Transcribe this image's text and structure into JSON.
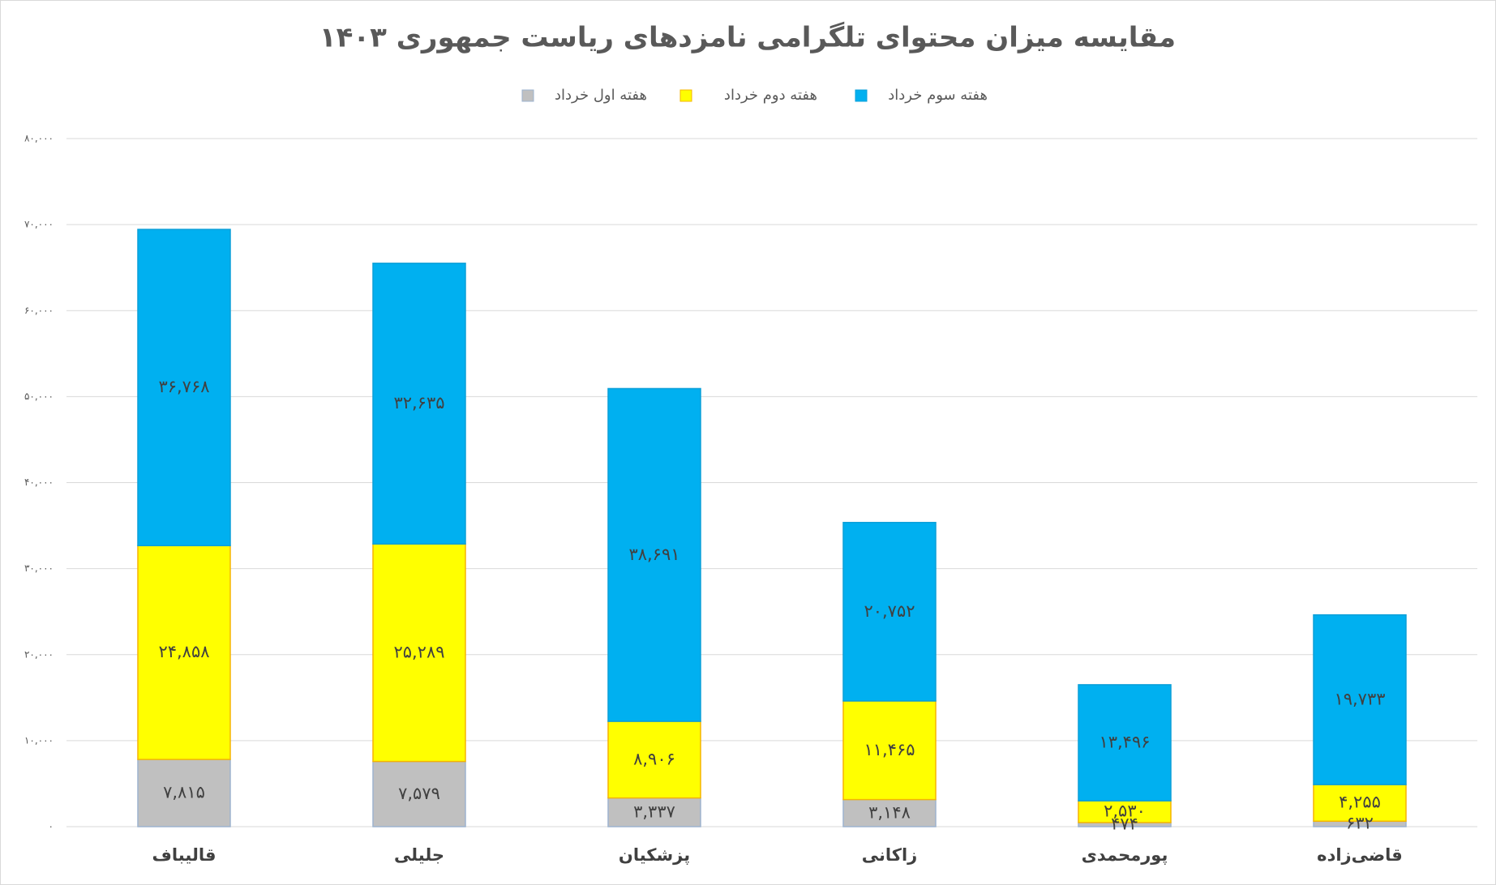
{
  "chart_data": {
    "type": "stacked-bar",
    "title": "مقایسه میزان محتوای تلگرامی نامزدهای ریاست  جمهوری ۱۴۰۳",
    "categories": [
      "قالیباف",
      "جلیلی",
      "پزشکیان",
      "زاکانی",
      "پورمحمدی",
      "قاضی‌زاده"
    ],
    "series": [
      {
        "name": "هفته اول خرداد",
        "color": "#c0c0c0",
        "values": [
          7815,
          7579,
          3337,
          3148,
          474,
          632
        ],
        "value_labels": [
          "۷,۸۱۵",
          "۷,۵۷۹",
          "۳,۳۳۷",
          "۳,۱۴۸",
          "۴۷۴",
          "۶۳۲"
        ]
      },
      {
        "name": "هفته دوم خرداد",
        "color": "#ffff00",
        "values": [
          24858,
          25289,
          8906,
          11465,
          2530,
          4255
        ],
        "value_labels": [
          "۲۴,۸۵۸",
          "۲۵,۲۸۹",
          "۸,۹۰۶",
          "۱۱,۴۶۵",
          "۲,۵۳۰",
          "۴,۲۵۵"
        ]
      },
      {
        "name": "هفته سوم خرداد",
        "color": "#00b0f0",
        "values": [
          36768,
          32635,
          38691,
          20752,
          13496,
          19733
        ],
        "value_labels": [
          "۳۶,۷۶۸",
          "۳۲,۶۳۵",
          "۳۸,۶۹۱",
          "۲۰,۷۵۲",
          "۱۳,۴۹۶",
          "۱۹,۷۳۳"
        ]
      }
    ],
    "ylim": [
      0,
      80000
    ],
    "yticks": [
      {
        "value": 0,
        "label": "۰"
      },
      {
        "value": 10000,
        "label": "۱۰,۰۰۰"
      },
      {
        "value": 20000,
        "label": "۲۰,۰۰۰"
      },
      {
        "value": 30000,
        "label": "۳۰,۰۰۰"
      },
      {
        "value": 40000,
        "label": "۴۰,۰۰۰"
      },
      {
        "value": 50000,
        "label": "۵۰,۰۰۰"
      },
      {
        "value": 60000,
        "label": "۶۰,۰۰۰"
      },
      {
        "value": 70000,
        "label": "۷۰,۰۰۰"
      },
      {
        "value": 80000,
        "label": "۸۰,۰۰۰"
      }
    ],
    "grid": true
  }
}
